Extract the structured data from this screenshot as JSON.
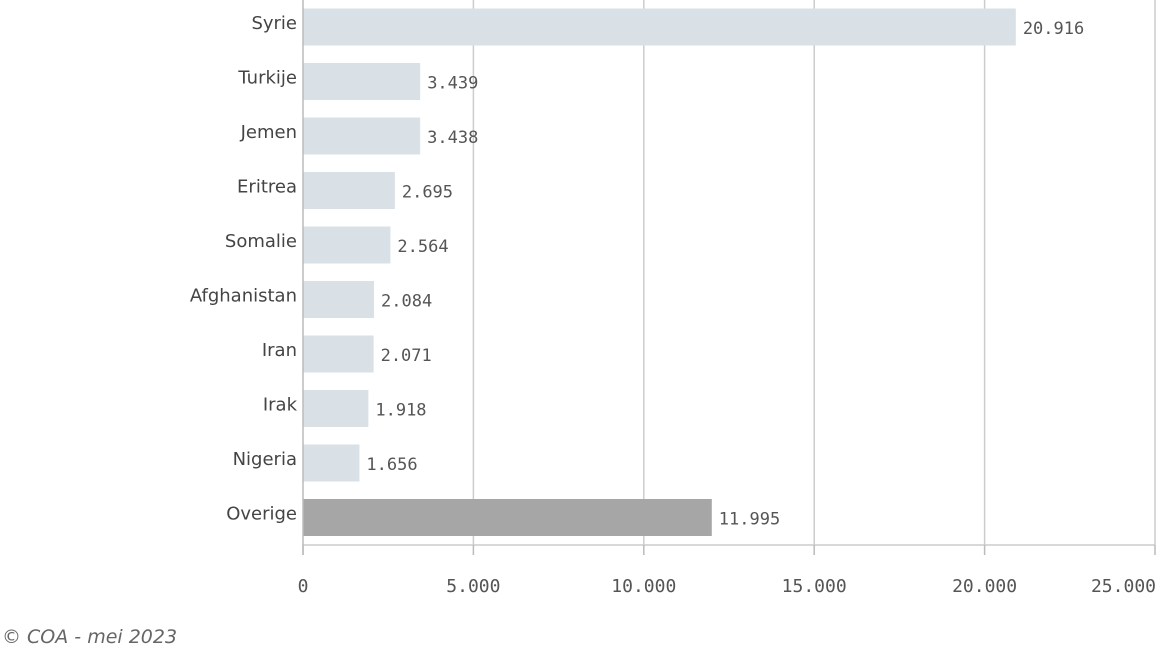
{
  "chart_data": {
    "type": "bar",
    "orientation": "horizontal",
    "categories": [
      "Syrie",
      "Turkije",
      "Jemen",
      "Eritrea",
      "Somalie",
      "Afghanistan",
      "Iran",
      "Irak",
      "Nigeria",
      "Overige"
    ],
    "values": [
      20916,
      3439,
      3438,
      2695,
      2564,
      2084,
      2071,
      1918,
      1656,
      11995
    ],
    "value_labels": [
      "20.916",
      "3.439",
      "3.438",
      "2.695",
      "2.564",
      "2.084",
      "2.071",
      "1.918",
      "1.656",
      "11.995"
    ],
    "xlim": [
      0,
      25000
    ],
    "x_ticks": [
      0,
      5000,
      10000,
      15000,
      20000,
      25000
    ],
    "x_tick_labels": [
      "0",
      "5.000",
      "10.000",
      "15.000",
      "20.000",
      "25.000"
    ],
    "grid": "vertical",
    "colors": {
      "bar": "#d9e0e6",
      "highlight_bar": "#a6a6a6",
      "grid": "#cccccc"
    },
    "highlight_category": "Overige"
  },
  "footer": {
    "credit": "© COA - mei 2023"
  }
}
